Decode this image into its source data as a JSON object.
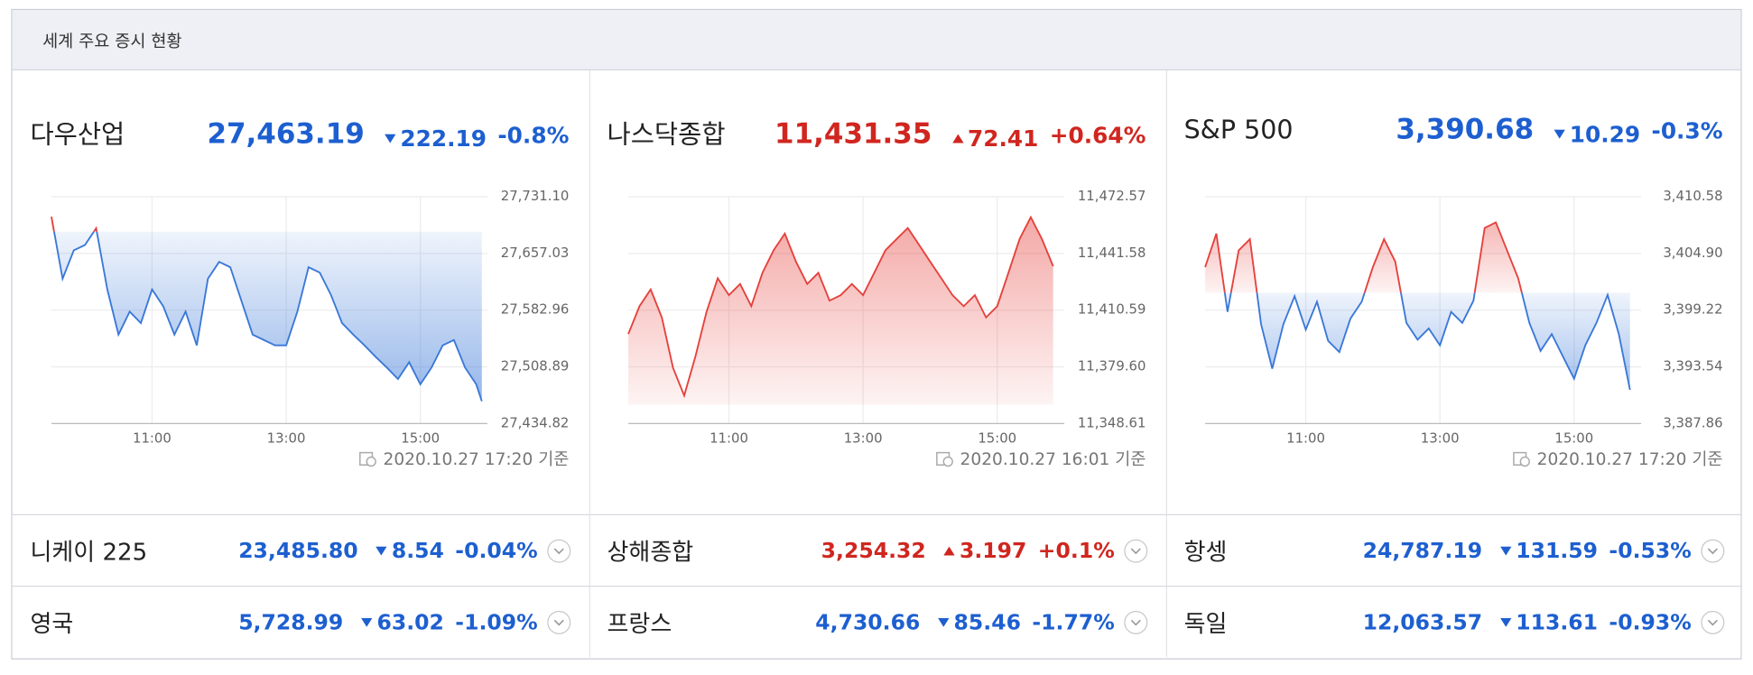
{
  "header": {
    "title": "세계 주요 증시 현황"
  },
  "colors": {
    "up": "#d0261f",
    "down": "#1d5fd0",
    "line_up": "#e5413c",
    "line_down": "#3a78d8"
  },
  "chart_data": [
    {
      "type": "line",
      "name": "다우산업",
      "price": "27,463.19",
      "change": "222.19",
      "change_percent": "-0.8%",
      "direction": "down",
      "timestamp": "2020.10.27 17:20 기준",
      "x": [
        570,
        580,
        590,
        600,
        610,
        620,
        630,
        640,
        650,
        660,
        670,
        680,
        690,
        700,
        710,
        720,
        730,
        740,
        750,
        760,
        770,
        780,
        790,
        800,
        810,
        820,
        830,
        840,
        850,
        860,
        870,
        880,
        890,
        900,
        910,
        920,
        930,
        940,
        950,
        955
      ],
      "values": [
        27705,
        27624,
        27661,
        27668,
        27690,
        27610,
        27551,
        27581,
        27566,
        27610,
        27588,
        27551,
        27581,
        27537,
        27624,
        27646,
        27639,
        27595,
        27551,
        27544,
        27537,
        27537,
        27581,
        27639,
        27632,
        27603,
        27566,
        27551,
        27537,
        27522,
        27508,
        27493,
        27515,
        27486,
        27508,
        27537,
        27544,
        27508,
        27486,
        27464
      ],
      "reference": 27685.38,
      "xlim": [
        570,
        960
      ],
      "xticks": [
        {
          "value": 660,
          "label": "11:00"
        },
        {
          "value": 780,
          "label": "13:00"
        },
        {
          "value": 900,
          "label": "15:00"
        }
      ],
      "ylim": [
        27434.82,
        27731.1
      ],
      "yticks": [
        {
          "value": 27434.82,
          "label": "27,434.82"
        },
        {
          "value": 27508.89,
          "label": "27,508.89"
        },
        {
          "value": 27582.96,
          "label": "27,582.96"
        },
        {
          "value": 27657.03,
          "label": "27,657.03"
        },
        {
          "value": 27731.1,
          "label": "27,731.10"
        }
      ],
      "grid": true
    },
    {
      "type": "line",
      "name": "나스닥종합",
      "price": "11,431.35",
      "change": "72.41",
      "change_percent": "+0.64%",
      "direction": "up",
      "timestamp": "2020.10.27 16:01 기준",
      "x": [
        570,
        580,
        590,
        600,
        610,
        620,
        630,
        640,
        650,
        660,
        670,
        680,
        690,
        700,
        710,
        720,
        730,
        740,
        750,
        760,
        770,
        780,
        790,
        800,
        810,
        820,
        830,
        840,
        850,
        860,
        870,
        880,
        890,
        900,
        910,
        920,
        930,
        940,
        950
      ],
      "values": [
        11397.5,
        11412.7,
        11421.9,
        11406.6,
        11379.1,
        11363.9,
        11385.2,
        11409.7,
        11428.0,
        11418.8,
        11424.9,
        11412.7,
        11431.0,
        11443.3,
        11452.4,
        11437.1,
        11424.9,
        11431.0,
        11415.8,
        11418.8,
        11424.9,
        11418.8,
        11431.0,
        11443.3,
        11449.4,
        11455.5,
        11446.4,
        11437.1,
        11428.0,
        11418.8,
        11412.7,
        11418.8,
        11406.6,
        11412.7,
        11431.0,
        11449.4,
        11461.4,
        11449.4,
        11434.6
      ],
      "reference": 11358.94,
      "xlim": [
        570,
        960
      ],
      "xticks": [
        {
          "value": 660,
          "label": "11:00"
        },
        {
          "value": 780,
          "label": "13:00"
        },
        {
          "value": 900,
          "label": "15:00"
        }
      ],
      "ylim": [
        11348.61,
        11472.57
      ],
      "yticks": [
        {
          "value": 11348.61,
          "label": "11,348.61"
        },
        {
          "value": 11379.6,
          "label": "11,379.60"
        },
        {
          "value": 11410.59,
          "label": "11,410.59"
        },
        {
          "value": 11441.58,
          "label": "11,441.58"
        },
        {
          "value": 11472.57,
          "label": "11,472.57"
        }
      ],
      "grid": true
    },
    {
      "type": "line",
      "name": "S&P 500",
      "price": "3,390.68",
      "change": "10.29",
      "change_percent": "-0.3%",
      "direction": "down",
      "timestamp": "2020.10.27 17:20 기준",
      "x": [
        570,
        580,
        590,
        600,
        610,
        620,
        630,
        640,
        650,
        660,
        670,
        680,
        690,
        700,
        710,
        720,
        730,
        740,
        750,
        760,
        770,
        780,
        790,
        800,
        810,
        820,
        830,
        840,
        850,
        860,
        870,
        880,
        890,
        900,
        910,
        920,
        930,
        940,
        950
      ],
      "values": [
        3403.53,
        3406.89,
        3399.05,
        3405.21,
        3406.33,
        3397.82,
        3393.35,
        3397.82,
        3400.62,
        3397.26,
        3400.06,
        3396.14,
        3395.02,
        3398.38,
        3400.06,
        3403.53,
        3406.33,
        3404.09,
        3397.94,
        3396.26,
        3397.38,
        3395.7,
        3399.05,
        3397.94,
        3400.17,
        3407.45,
        3408.01,
        3405.21,
        3402.41,
        3397.94,
        3395.14,
        3396.82,
        3394.58,
        3392.35,
        3395.7,
        3397.94,
        3400.74,
        3396.82,
        3391.23
      ],
      "reference": 3400.97,
      "xlim": [
        570,
        960
      ],
      "xticks": [
        {
          "value": 660,
          "label": "11:00"
        },
        {
          "value": 780,
          "label": "13:00"
        },
        {
          "value": 900,
          "label": "15:00"
        }
      ],
      "ylim": [
        3387.86,
        3410.58
      ],
      "yticks": [
        {
          "value": 3387.86,
          "label": "3,387.86"
        },
        {
          "value": 3393.54,
          "label": "3,393.54"
        },
        {
          "value": 3399.22,
          "label": "3,399.22"
        },
        {
          "value": 3404.9,
          "label": "3,404.90"
        },
        {
          "value": 3410.58,
          "label": "3,410.58"
        }
      ],
      "grid": true
    }
  ],
  "markets": [
    [
      {
        "name": "니케이 225",
        "price": "23,485.80",
        "change": "8.54",
        "change_percent": "-0.04%",
        "direction": "down"
      },
      {
        "name": "상해종합",
        "price": "3,254.32",
        "change": "3.197",
        "change_percent": "+0.1%",
        "direction": "up"
      },
      {
        "name": "항셍",
        "price": "24,787.19",
        "change": "131.59",
        "change_percent": "-0.53%",
        "direction": "down"
      }
    ],
    [
      {
        "name": "영국",
        "price": "5,728.99",
        "change": "63.02",
        "change_percent": "-1.09%",
        "direction": "down"
      },
      {
        "name": "프랑스",
        "price": "4,730.66",
        "change": "85.46",
        "change_percent": "-1.77%",
        "direction": "down"
      },
      {
        "name": "독일",
        "price": "12,063.57",
        "change": "113.61",
        "change_percent": "-0.93%",
        "direction": "down"
      }
    ]
  ]
}
